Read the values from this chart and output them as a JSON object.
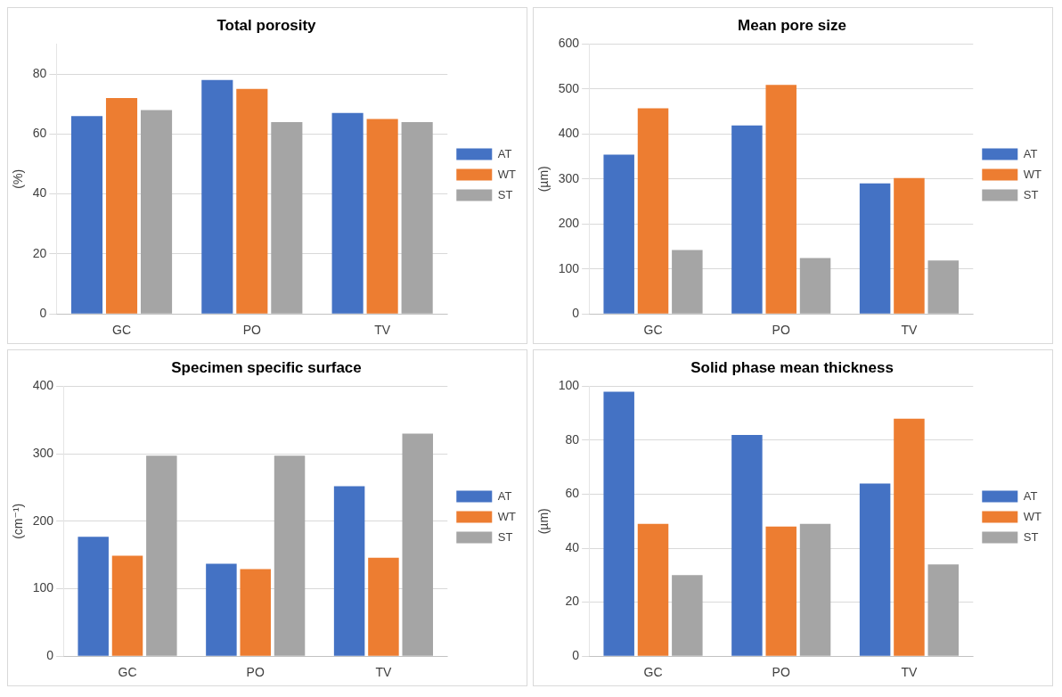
{
  "chart_data": [
    {
      "type": "bar",
      "title": "Total porosity",
      "ylabel": "(%)",
      "categories": [
        "GC",
        "PO",
        "TV"
      ],
      "ylim": [
        0,
        90
      ],
      "yticks": [
        0,
        20,
        40,
        60,
        80
      ],
      "grid": "y",
      "legend": "right",
      "series": [
        {
          "name": "AT",
          "color": "#4472c4",
          "values": [
            66,
            78,
            67
          ]
        },
        {
          "name": "WT",
          "color": "#ed7d31",
          "values": [
            72,
            75,
            65
          ]
        },
        {
          "name": "ST",
          "color": "#a5a5a5",
          "values": [
            68,
            64,
            64
          ]
        }
      ]
    },
    {
      "type": "bar",
      "title": "Mean pore size",
      "ylabel": "(µm)",
      "categories": [
        "GC",
        "PO",
        "TV"
      ],
      "ylim": [
        0,
        600
      ],
      "yticks": [
        0,
        100,
        200,
        300,
        400,
        500,
        600
      ],
      "grid": "y",
      "legend": "right",
      "series": [
        {
          "name": "AT",
          "color": "#4472c4",
          "values": [
            354,
            419,
            290
          ]
        },
        {
          "name": "WT",
          "color": "#ed7d31",
          "values": [
            457,
            509,
            302
          ]
        },
        {
          "name": "ST",
          "color": "#a5a5a5",
          "values": [
            142,
            124,
            119
          ]
        }
      ]
    },
    {
      "type": "bar",
      "title": "Specimen specific surface",
      "ylabel": "(cm⁻¹)",
      "categories": [
        "GC",
        "PO",
        "TV"
      ],
      "ylim": [
        0,
        400
      ],
      "yticks": [
        0,
        100,
        200,
        300,
        400
      ],
      "grid": "y",
      "legend": "right",
      "series": [
        {
          "name": "AT",
          "color": "#4472c4",
          "values": [
            177,
            137,
            252
          ]
        },
        {
          "name": "WT",
          "color": "#ed7d31",
          "values": [
            149,
            129,
            146
          ]
        },
        {
          "name": "ST",
          "color": "#a5a5a5",
          "values": [
            297,
            297,
            330
          ]
        }
      ]
    },
    {
      "type": "bar",
      "title": "Solid phase mean thickness",
      "ylabel": "(µm)",
      "categories": [
        "GC",
        "PO",
        "TV"
      ],
      "ylim": [
        0,
        100
      ],
      "yticks": [
        0,
        20,
        40,
        60,
        80,
        100
      ],
      "grid": "y",
      "legend": "right",
      "series": [
        {
          "name": "AT",
          "color": "#4472c4",
          "values": [
            98,
            82,
            64
          ]
        },
        {
          "name": "WT",
          "color": "#ed7d31",
          "values": [
            49,
            48,
            88
          ]
        },
        {
          "name": "ST",
          "color": "#a5a5a5",
          "values": [
            30,
            49,
            34
          ]
        }
      ]
    }
  ]
}
